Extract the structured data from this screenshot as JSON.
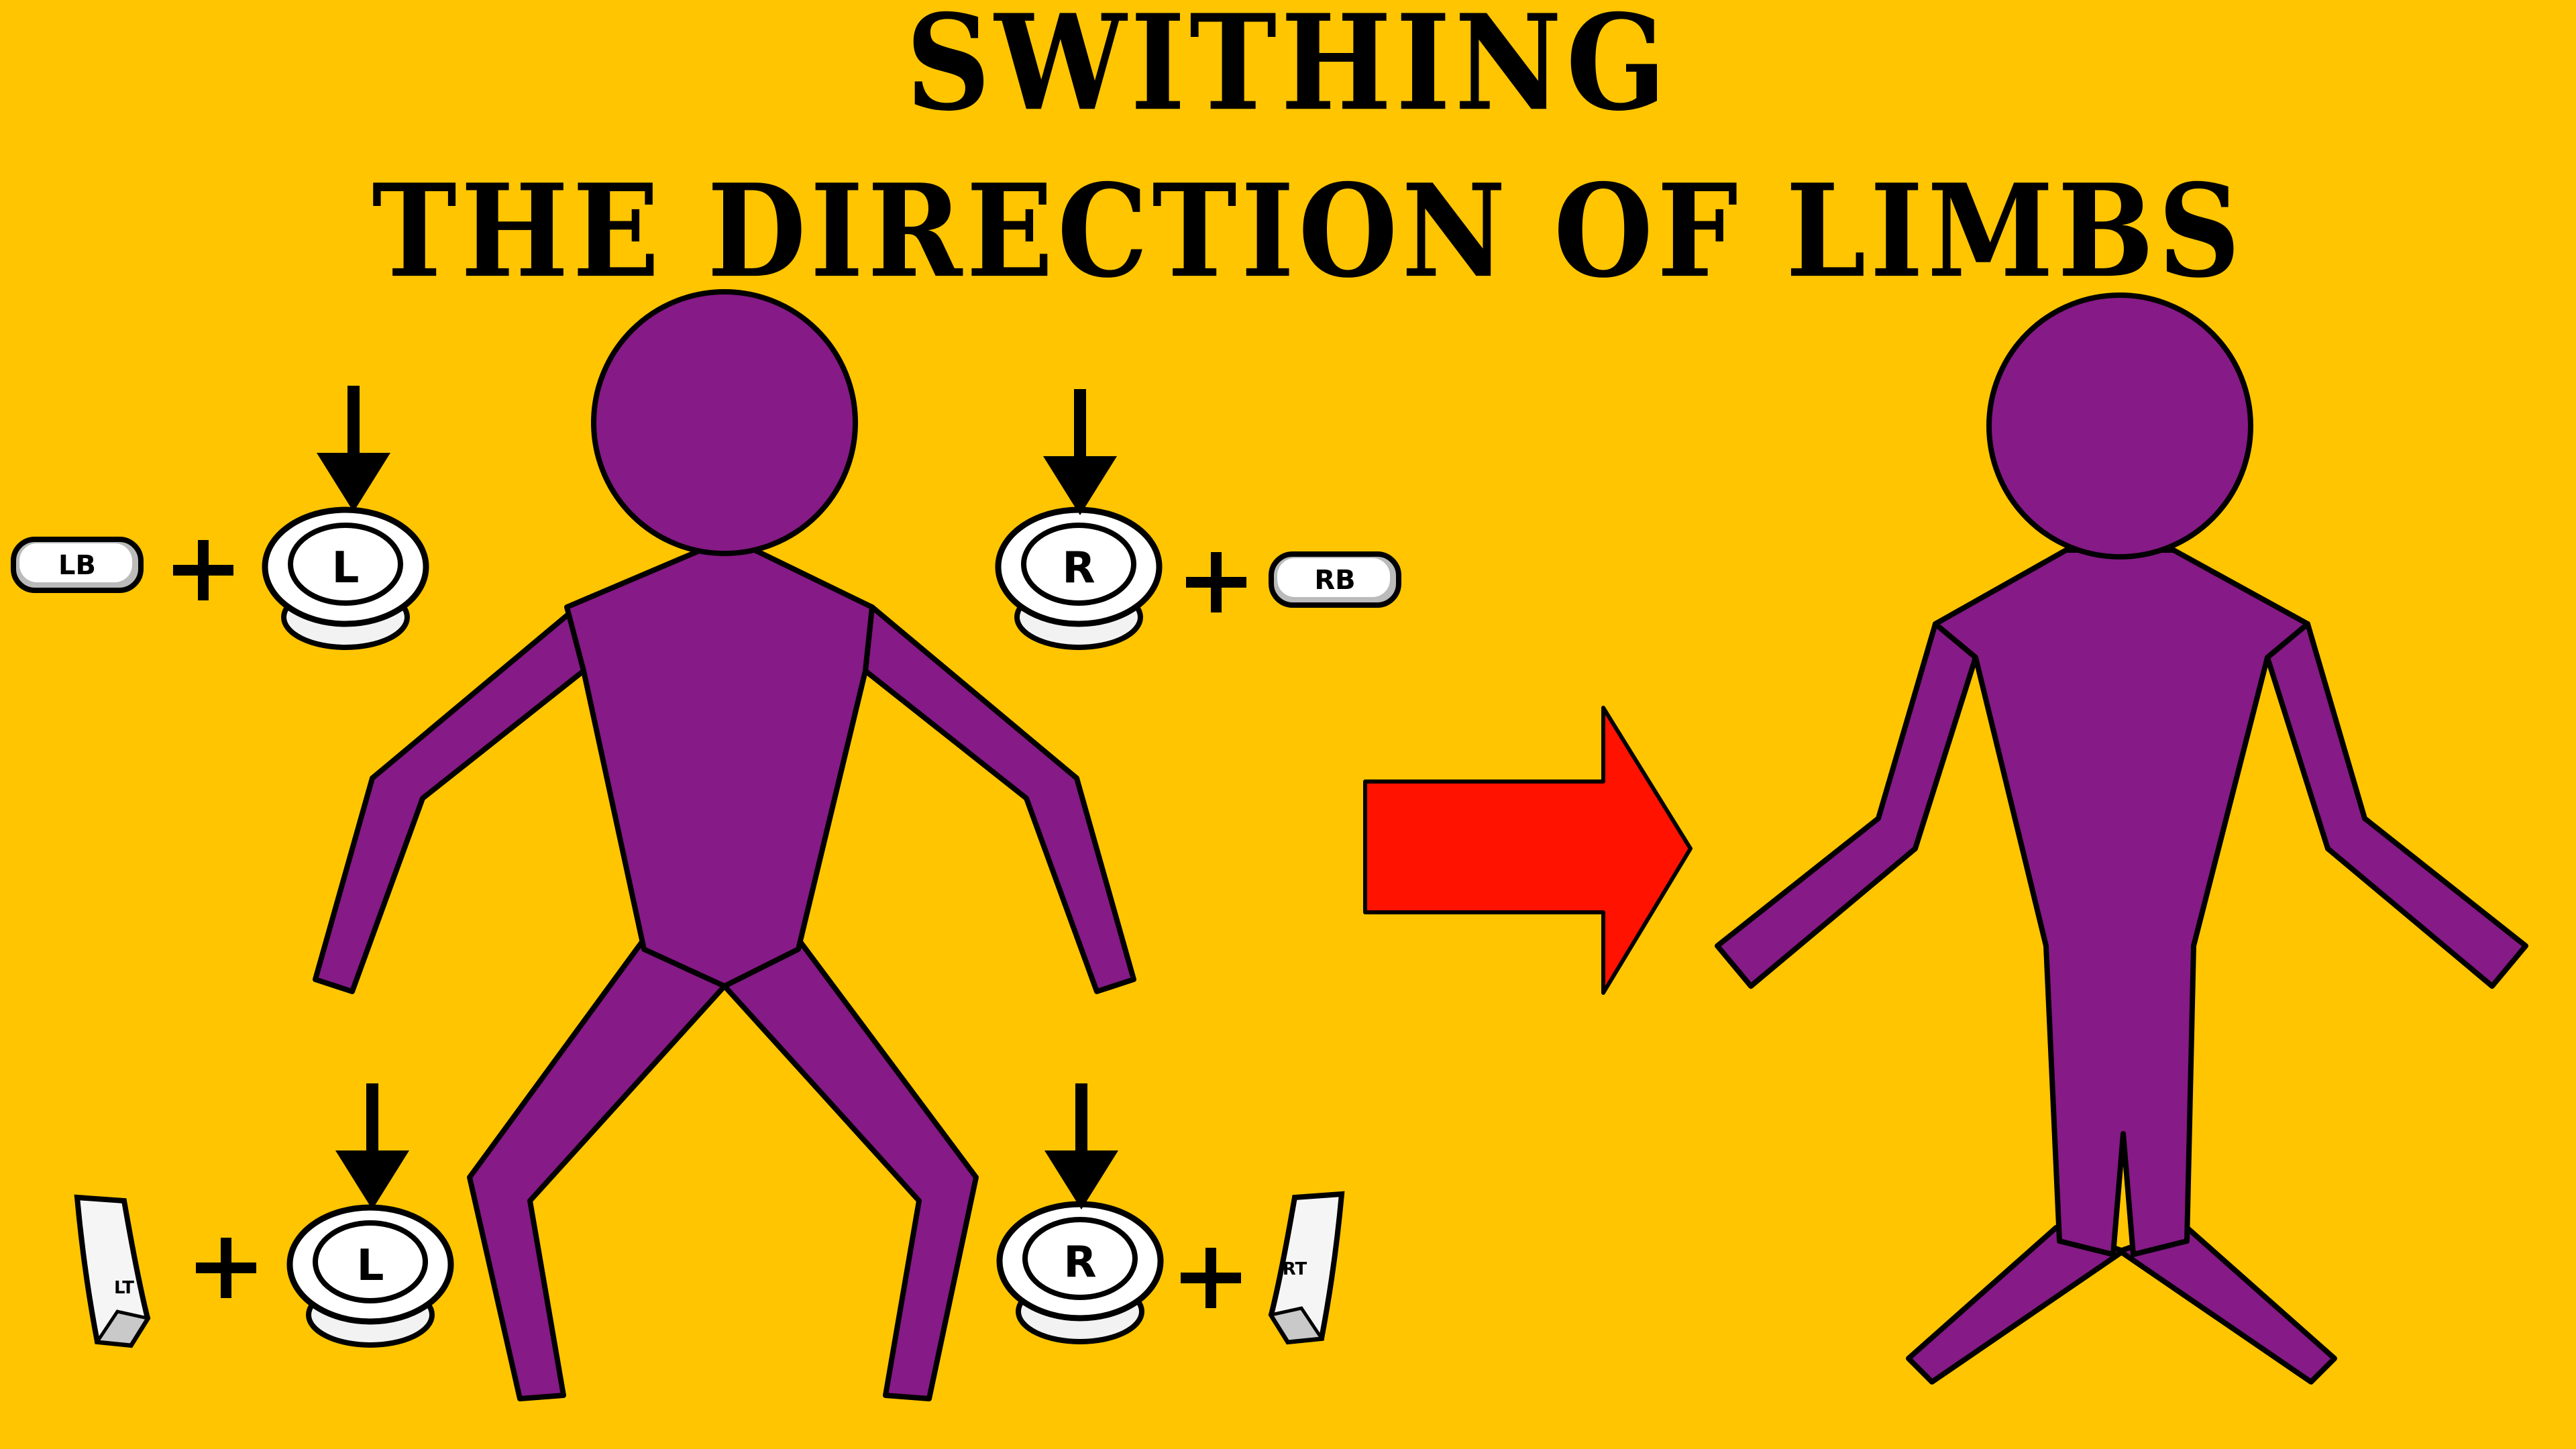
{
  "title": {
    "line1": "SWITHING",
    "line2": "THE DIRECTION OF LIMBS"
  },
  "controls": {
    "lb": "LB",
    "rb": "RB",
    "lt": "LT",
    "rt": "RT",
    "l_stick": "L",
    "r_stick": "R",
    "plus": "+"
  },
  "colors": {
    "background": "#fec500",
    "figure": "#861a86",
    "arrow": "#ff1200",
    "outline": "#000000"
  },
  "icons": [
    "down-arrow-icon",
    "bumper-button-icon",
    "trigger-button-icon",
    "analog-stick-icon",
    "right-arrow-icon",
    "stick-figure"
  ]
}
